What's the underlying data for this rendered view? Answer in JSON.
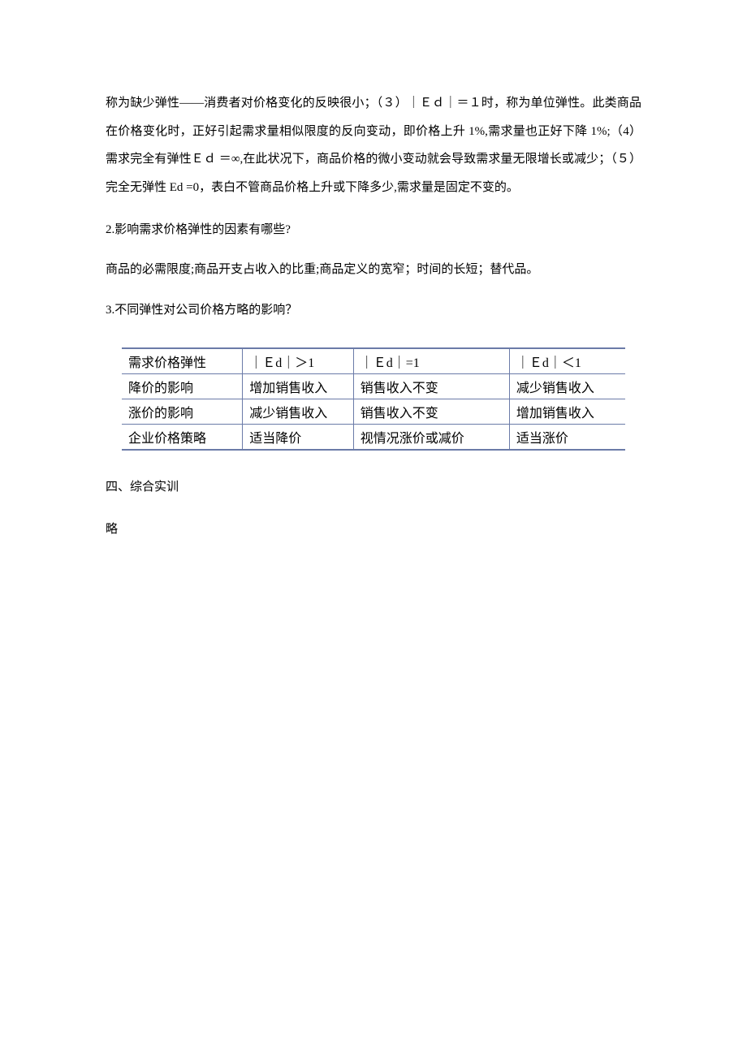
{
  "paragraph1": "称为缺少弹性——消费者对价格变化的反映很小；（３）｜Ｅｄ｜＝１时，称为单位弹性。此类商品在价格变化时，正好引起需求量相似限度的反向变动，即价格上升 1%,需求量也正好下降 1%;（4）需求完全有弹性Ｅｄ ＝∞,在此状况下，商品价格的微小变动就会导致需求量无限增长或减少；（５）完全无弹性 Ed =0，表白不管商品价格上升或下降多少,需求量是固定不变的。",
  "question2": "2.影响需求价格弹性的因素有哪些?",
  "answer2": "商品的必需限度;商品开支占收入的比重;商品定义的宽窄；时间的长短；替代品。",
  "question3": "3.不同弹性对公司价格方略的影响？",
  "table": {
    "rows": [
      [
        "需求价格弹性",
        "｜Ｅd｜＞1",
        "｜Ｅd｜=1",
        "｜Ｅd｜＜1"
      ],
      [
        "降价的影响",
        "增加销售收入",
        "销售收入不变",
        "减少销售收入"
      ],
      [
        "涨价的影响",
        "减少销售收入",
        "销售收入不变",
        "增加销售收入"
      ],
      [
        "企业价格策略",
        "适当降价",
        "视情况涨价或减价",
        "适当涨价"
      ]
    ],
    "border_color": "#6b7ba8",
    "bg_color": "#ffffff",
    "font_size": 16,
    "col_widths": [
      "24%",
      "22%",
      "31%",
      "23%"
    ]
  },
  "section4": "四、综合实训",
  "section4_content": "略",
  "colors": {
    "text": "#000000",
    "background": "#ffffff",
    "table_border": "#6b7ba8"
  },
  "typography": {
    "body_font_size": 15,
    "table_font_size": 16,
    "line_height": 2.3
  }
}
